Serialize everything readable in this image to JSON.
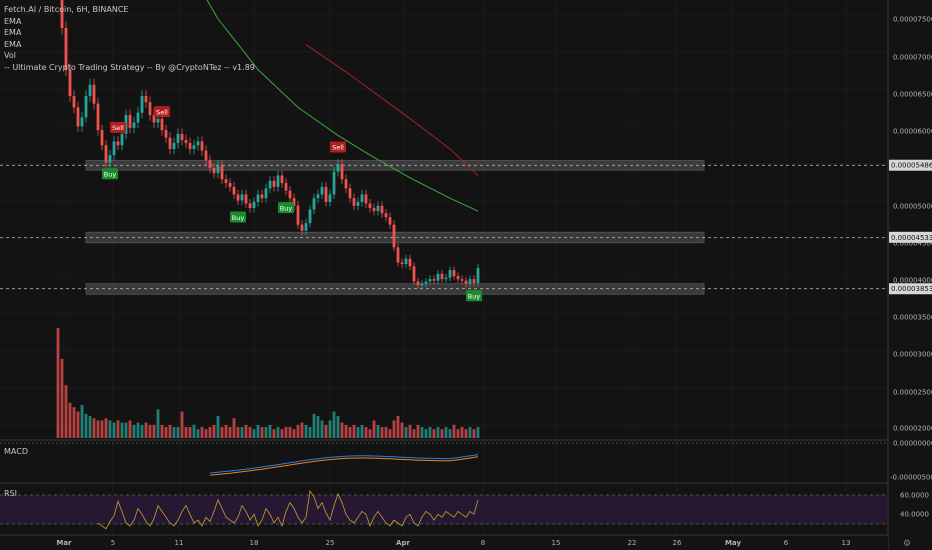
{
  "legend": {
    "symbol": "Fetch.AI / Bitcoin, 6H, BINANCE",
    "ema1": "EMA",
    "ema2": "EMA",
    "ema3": "EMA",
    "vol": "Vol",
    "strategy": "-- Ultimate Crypto Trading Strategy -- By @CryptoNTez -- v1.89"
  },
  "panes": {
    "macd_label": "MACD",
    "rsi_label": "RSI"
  },
  "colors": {
    "background": "#131313",
    "up": "#26a69a",
    "down": "#ef5350",
    "ema_green": "#3fa83f",
    "ema_red": "#a8202a",
    "macd_line": "#2f7fd6",
    "signal_line": "#e8862a",
    "rsi_line": "#c9a227",
    "rsi_band": "#2a1a3a",
    "buy": "#1b8c2c",
    "sell": "#b01e1e",
    "zone": "#5a5a5a"
  },
  "chart_data": {
    "type": "candlestick",
    "x_tick_labels": [
      "Mar",
      "5",
      "11",
      "18",
      "25",
      "Apr",
      "8",
      "15",
      "22",
      "26",
      "May",
      "6",
      "13"
    ],
    "price_axis_labels": [
      "0.00007500",
      "0.00007000",
      "0.00006500",
      "0.00006000",
      "0.00005500",
      "0.00005000",
      "0.00004500",
      "0.00004000",
      "0.00003500",
      "0.00003000",
      "0.00002500",
      "0.00002000"
    ],
    "price_range": [
      1.88e-05,
      7.67e-05
    ],
    "highlighted_prices": [
      {
        "label": "0.00005486",
        "value": 5.486e-05
      },
      {
        "label": "0.00004533",
        "value": 4.533e-05
      },
      {
        "label": "0.00003853",
        "value": 3.853e-05
      }
    ],
    "zones": [
      {
        "low": 5.42e-05,
        "high": 5.55e-05
      },
      {
        "low": 4.46e-05,
        "high": 4.6e-05
      },
      {
        "low": 3.78e-05,
        "high": 3.92e-05
      }
    ],
    "closes": [
      7.87e-05,
      7.3e-05,
      6.75e-05,
      6.4e-05,
      6.25e-05,
      6e-05,
      6.12e-05,
      6.4e-05,
      6.55e-05,
      6.3e-05,
      5.95e-05,
      5.75e-05,
      5.52e-05,
      5.62e-05,
      5.8e-05,
      5.75e-05,
      5.9e-05,
      6.15e-05,
      5.98e-05,
      6.05e-05,
      6.18e-05,
      6.4e-05,
      6.32e-05,
      6.15e-05,
      6.05e-05,
      6.1e-05,
      5.95e-05,
      5.85e-05,
      5.7e-05,
      5.78e-05,
      5.9e-05,
      5.82e-05,
      5.78e-05,
      5.7e-05,
      5.75e-05,
      5.8e-05,
      5.68e-05,
      5.55e-05,
      5.45e-05,
      5.38e-05,
      5.48e-05,
      5.3e-05,
      5.25e-05,
      5.2e-05,
      5.1e-05,
      5.02e-05,
      5.1e-05,
      4.98e-05,
      4.92e-05,
      5e-05,
      5.1e-05,
      5.05e-05,
      5.18e-05,
      5.28e-05,
      5.2e-05,
      5.35e-05,
      5.25e-05,
      5.15e-05,
      5.05e-05,
      4.95e-05,
      4.7e-05,
      4.62e-05,
      4.72e-05,
      4.9e-05,
      5.05e-05,
      5.1e-05,
      5.2e-05,
      5e-05,
      5.1e-05,
      5.4e-05,
      5.5e-05,
      5.3e-05,
      5.18e-05,
      5.05e-05,
      4.95e-05,
      5e-05,
      5.1e-05,
      4.98e-05,
      4.92e-05,
      4.88e-05,
      4.95e-05,
      4.85e-05,
      4.8e-05,
      4.7e-05,
      4.4e-05,
      4.2e-05,
      4.18e-05,
      4.25e-05,
      4.15e-05,
      3.95e-05,
      3.9e-05,
      3.92e-05,
      3.95e-05,
      3.98e-05,
      3.96e-05,
      4.05e-05,
      3.98e-05,
      4e-05,
      4.1e-05,
      4.02e-05,
      3.98e-05,
      3.96e-05,
      3.92e-05,
      3.98e-05,
      3.93e-05,
      4.13e-05
    ],
    "volume": [
      5.0,
      3.6,
      2.4,
      1.6,
      1.4,
      1.2,
      1.5,
      1.1,
      1.0,
      0.9,
      0.8,
      0.8,
      0.9,
      0.8,
      0.7,
      0.8,
      0.7,
      0.7,
      0.8,
      0.6,
      0.7,
      0.6,
      0.7,
      0.6,
      0.6,
      1.3,
      0.6,
      0.5,
      0.6,
      0.5,
      0.5,
      1.2,
      0.5,
      0.5,
      0.6,
      0.4,
      0.5,
      0.4,
      0.5,
      0.6,
      1.0,
      0.5,
      0.6,
      0.5,
      0.9,
      0.5,
      0.5,
      0.6,
      0.5,
      0.4,
      0.6,
      0.5,
      0.5,
      0.6,
      0.4,
      0.5,
      0.4,
      0.5,
      0.5,
      0.4,
      0.6,
      0.7,
      0.6,
      0.5,
      1.1,
      1.0,
      0.8,
      0.6,
      0.8,
      1.2,
      1.0,
      0.7,
      0.6,
      0.5,
      0.6,
      0.5,
      0.6,
      0.5,
      0.4,
      0.8,
      0.6,
      0.5,
      0.5,
      0.4,
      0.8,
      1.0,
      0.7,
      0.5,
      0.6,
      0.4,
      0.6,
      0.5,
      0.4,
      0.5,
      0.4,
      0.5,
      0.4,
      0.5,
      0.4,
      0.6,
      0.4,
      0.5,
      0.4,
      0.5,
      0.4,
      0.5
    ],
    "volume_axis_labels": [
      "0.00003000",
      "0.00002500",
      "0.00002000"
    ],
    "ema_green": [
      [
        32,
        8.15e-05
      ],
      [
        40,
        7.42e-05
      ],
      [
        50,
        6.75e-05
      ],
      [
        60,
        6.25e-05
      ],
      [
        70,
        5.88e-05
      ],
      [
        78,
        5.62e-05
      ],
      [
        88,
        5.32e-05
      ],
      [
        98,
        5.05e-05
      ],
      [
        105,
        4.88e-05
      ]
    ],
    "ema_red": [
      [
        62,
        7.08e-05
      ],
      [
        72,
        6.72e-05
      ],
      [
        86,
        6.18e-05
      ],
      [
        98,
        5.7e-05
      ],
      [
        105,
        5.35e-05
      ]
    ],
    "signals": [
      {
        "type": "Sell",
        "label": "Sell",
        "index": 15
      },
      {
        "type": "Buy",
        "label": "Buy",
        "index": 13
      },
      {
        "type": "Sell",
        "label": "Sell",
        "index": 26
      },
      {
        "type": "Buy",
        "label": "Buy",
        "index": 45
      },
      {
        "type": "Buy",
        "label": "Buy",
        "index": 57
      },
      {
        "type": "Sell",
        "label": "Sell",
        "index": 70
      },
      {
        "type": "Buy",
        "label": "Buy",
        "index": 104
      }
    ],
    "macd_axis_labels": [
      "0.00000000",
      "-0.00000500"
    ],
    "rsi_axis_labels": [
      "60.0000",
      "40.0000"
    ],
    "rsi": [
      52,
      50,
      44,
      42,
      48,
      41,
      38,
      43,
      52,
      47,
      40,
      38,
      36,
      41,
      45,
      55,
      48,
      40,
      38,
      42,
      50,
      46,
      41,
      38,
      43,
      52,
      48,
      44,
      40,
      38,
      42,
      48,
      52,
      46,
      40,
      42,
      38,
      44,
      41,
      48,
      56,
      50,
      44,
      42,
      40,
      44,
      52,
      48,
      42,
      46,
      38,
      42,
      50,
      46,
      40,
      44,
      38,
      48,
      54,
      50,
      44,
      40,
      44,
      62,
      58,
      50,
      54,
      47,
      42,
      52,
      60,
      54,
      46,
      42,
      40,
      44,
      48,
      46,
      38,
      44,
      48,
      44,
      40,
      38,
      42,
      40,
      38,
      44,
      46,
      40,
      38,
      44,
      48,
      46,
      42,
      46,
      44,
      48,
      46,
      44,
      48,
      46,
      44,
      48,
      46,
      56
    ]
  }
}
